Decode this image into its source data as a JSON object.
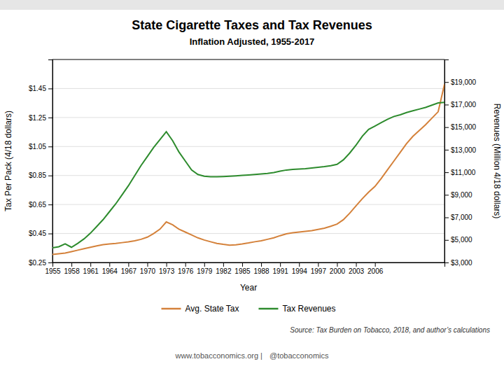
{
  "chart_data": {
    "type": "line",
    "title": "State Cigarette Taxes and Tax Revenues",
    "subtitle": "Inflation Adjusted, 1955-2017",
    "xlabel": "Year",
    "ylabel": "Tax Per Pack (4/18 dollars)",
    "y2label": "Revenues (Million 4/18 dollars)",
    "x": [
      1955,
      1956,
      1957,
      1958,
      1959,
      1960,
      1961,
      1962,
      1963,
      1964,
      1965,
      1966,
      1967,
      1968,
      1969,
      1970,
      1971,
      1972,
      1973,
      1974,
      1975,
      1976,
      1977,
      1978,
      1979,
      1980,
      1981,
      1982,
      1983,
      1984,
      1985,
      1986,
      1987,
      1988,
      1989,
      1990,
      1991,
      1992,
      1993,
      1994,
      1995,
      1996,
      1997,
      1998,
      1999,
      2000,
      2001,
      2002,
      2003,
      2004,
      2005,
      2006,
      2007,
      2008,
      2009,
      2010,
      2011,
      2012,
      2013,
      2014,
      2015,
      2016,
      2017
    ],
    "series": [
      {
        "name": "Avg. State Tax",
        "color": "#d4813a",
        "axis": "y",
        "values": [
          0.305,
          0.31,
          0.315,
          0.325,
          0.335,
          0.345,
          0.355,
          0.365,
          0.373,
          0.378,
          0.382,
          0.387,
          0.392,
          0.4,
          0.41,
          0.425,
          0.45,
          0.48,
          0.53,
          0.51,
          0.48,
          0.46,
          0.44,
          0.42,
          0.405,
          0.393,
          0.382,
          0.375,
          0.37,
          0.372,
          0.378,
          0.385,
          0.393,
          0.4,
          0.41,
          0.42,
          0.435,
          0.448,
          0.455,
          0.46,
          0.465,
          0.47,
          0.478,
          0.487,
          0.5,
          0.515,
          0.545,
          0.59,
          0.64,
          0.69,
          0.735,
          0.775,
          0.83,
          0.89,
          0.95,
          1.01,
          1.07,
          1.12,
          1.16,
          1.2,
          1.245,
          1.29,
          1.48
        ]
      },
      {
        "name": "Tax Revenues",
        "color": "#2d8b2d",
        "axis": "y2",
        "values": [
          4300,
          4400,
          4650,
          4350,
          4700,
          5100,
          5600,
          6200,
          6800,
          7500,
          8200,
          9000,
          9800,
          10700,
          11600,
          12400,
          13200,
          13900,
          14600,
          13800,
          12800,
          12000,
          11200,
          10800,
          10650,
          10600,
          10600,
          10620,
          10650,
          10680,
          10720,
          10760,
          10800,
          10850,
          10900,
          10980,
          11100,
          11200,
          11250,
          11280,
          11320,
          11380,
          11440,
          11500,
          11580,
          11700,
          12100,
          12700,
          13400,
          14200,
          14800,
          15100,
          15400,
          15700,
          15950,
          16100,
          16300,
          16450,
          16600,
          16750,
          16950,
          17150,
          17200
        ]
      }
    ],
    "xlim": [
      1955,
      2017
    ],
    "xticks": [
      1955,
      1958,
      1961,
      1964,
      1967,
      1970,
      1973,
      1976,
      1979,
      1982,
      1985,
      1988,
      1991,
      1994,
      1997,
      2000,
      2003,
      2006
    ],
    "ylim": [
      0.25,
      1.65
    ],
    "yticks": [
      {
        "value": 0.25,
        "label": "$0.25"
      },
      {
        "value": 0.45,
        "label": "$0.45"
      },
      {
        "value": 0.65,
        "label": "$0.65"
      },
      {
        "value": 0.85,
        "label": "$0.85"
      },
      {
        "value": 1.05,
        "label": "$1.05"
      },
      {
        "value": 1.25,
        "label": "$1.25"
      },
      {
        "value": 1.45,
        "label": "$1.45"
      }
    ],
    "y2lim": [
      3000,
      21000
    ],
    "y2ticks": [
      {
        "value": 3000,
        "label": "$3,000"
      },
      {
        "value": 5000,
        "label": "$5,000"
      },
      {
        "value": 7000,
        "label": "$7,000"
      },
      {
        "value": 9000,
        "label": "$9,000"
      },
      {
        "value": 11000,
        "label": "$11,000"
      },
      {
        "value": 13000,
        "label": "$13,000"
      },
      {
        "value": 15000,
        "label": "$15,000"
      },
      {
        "value": 17000,
        "label": "$17,000"
      },
      {
        "value": 19000,
        "label": "$19,000"
      }
    ],
    "grid": true,
    "legend": "bottom",
    "annotations": [
      "Source: Tax Burden on Tobacco, 2018, and author’s calculations",
      "www.tobacconomics.org  |",
      "@tobacconomics"
    ]
  }
}
